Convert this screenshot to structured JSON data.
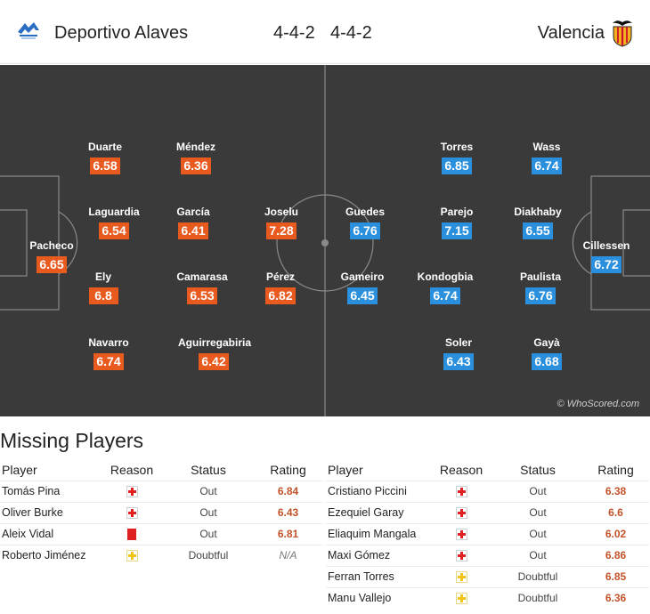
{
  "header": {
    "home_team": "Deportivo Alaves",
    "away_team": "Valencia",
    "home_formation": "4-4-2",
    "away_formation": "4-4-2",
    "home_logo_icon": "alaves-crest-icon",
    "away_logo_icon": "valencia-bat-crest-icon"
  },
  "colors": {
    "home_rating": "#e85a1e",
    "away_rating": "#2a8fdc",
    "pitch": "#3a3a3a"
  },
  "pitch": {
    "credit": "© WhoScored.com",
    "home_players": [
      {
        "name": "Pacheco",
        "rating": "6.65"
      },
      {
        "name": "Duarte",
        "rating": "6.58"
      },
      {
        "name": "Laguardia",
        "rating": "6.54"
      },
      {
        "name": "Ely",
        "rating": "6.8"
      },
      {
        "name": "Navarro",
        "rating": "6.74"
      },
      {
        "name": "Méndez",
        "rating": "6.36"
      },
      {
        "name": "García",
        "rating": "6.41"
      },
      {
        "name": "Camarasa",
        "rating": "6.53"
      },
      {
        "name": "Aguirregabiria",
        "rating": "6.42"
      },
      {
        "name": "Joselu",
        "rating": "7.28"
      },
      {
        "name": "Pérez",
        "rating": "6.82"
      }
    ],
    "away_players": [
      {
        "name": "Guedes",
        "rating": "6.76"
      },
      {
        "name": "Gameiro",
        "rating": "6.45"
      },
      {
        "name": "Torres",
        "rating": "6.85"
      },
      {
        "name": "Parejo",
        "rating": "7.15"
      },
      {
        "name": "Kondogbia",
        "rating": "6.74"
      },
      {
        "name": "Soler",
        "rating": "6.43"
      },
      {
        "name": "Wass",
        "rating": "6.74"
      },
      {
        "name": "Diakhaby",
        "rating": "6.55"
      },
      {
        "name": "Paulista",
        "rating": "6.76"
      },
      {
        "name": "Gayà",
        "rating": "6.68"
      },
      {
        "name": "Cillessen",
        "rating": "6.72"
      }
    ]
  },
  "missing": {
    "title": "Missing Players",
    "columns": {
      "player": "Player",
      "reason": "Reason",
      "status": "Status",
      "rating": "Rating"
    },
    "home": [
      {
        "player": "Tomás Pina",
        "reason": "injury-cross-icon",
        "status": "Out",
        "rating": "6.84"
      },
      {
        "player": "Oliver Burke",
        "reason": "injury-cross-icon",
        "status": "Out",
        "rating": "6.43"
      },
      {
        "player": "Aleix Vidal",
        "reason": "red-card-icon",
        "status": "Out",
        "rating": "6.81"
      },
      {
        "player": "Roberto Jiménez",
        "reason": "doubtful-cross-icon",
        "status": "Doubtful",
        "rating": "N/A"
      }
    ],
    "away": [
      {
        "player": "Cristiano Piccini",
        "reason": "injury-cross-icon",
        "status": "Out",
        "rating": "6.38"
      },
      {
        "player": "Ezequiel Garay",
        "reason": "injury-cross-icon",
        "status": "Out",
        "rating": "6.6"
      },
      {
        "player": "Eliaquim Mangala",
        "reason": "injury-cross-icon",
        "status": "Out",
        "rating": "6.02"
      },
      {
        "player": "Maxi Gómez",
        "reason": "injury-cross-icon",
        "status": "Out",
        "rating": "6.86"
      },
      {
        "player": "Ferran Torres",
        "reason": "doubtful-cross-icon",
        "status": "Doubtful",
        "rating": "6.85"
      },
      {
        "player": "Manu Vallejo",
        "reason": "doubtful-cross-icon",
        "status": "Doubtful",
        "rating": "6.36"
      }
    ]
  }
}
